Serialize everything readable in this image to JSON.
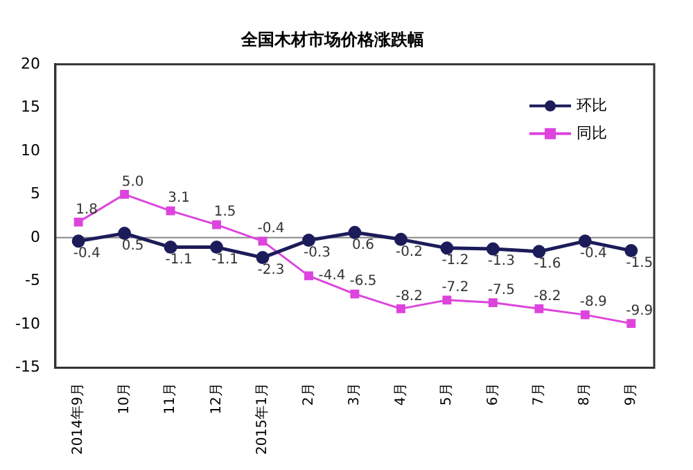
{
  "chart_data": {
    "type": "line",
    "title": "全国木材市场价格涨跌幅",
    "categories": [
      "2014年9月",
      "10月",
      "11月",
      "12月",
      "2015年1月",
      "2月",
      "3月",
      "4月",
      "5月",
      "6月",
      "7月",
      "8月",
      "9月"
    ],
    "series": [
      {
        "name": "环比",
        "color": "#1c1c5a",
        "marker": "circle",
        "values": [
          -0.4,
          0.5,
          -1.1,
          -1.1,
          -2.3,
          -0.3,
          0.6,
          -0.2,
          -1.2,
          -1.3,
          -1.6,
          -0.4,
          -1.5
        ],
        "value_labels": [
          "-0.4",
          "0.5",
          "-1.1",
          "-1.1",
          "-2.3",
          "-0.3",
          "0.6",
          "-0.2",
          "-1.2",
          "-1.3",
          "-1.6",
          "-0.4",
          "-1.5"
        ]
      },
      {
        "name": "同比",
        "color": "#dd44dd",
        "marker": "square",
        "values": [
          1.8,
          5.0,
          3.1,
          1.5,
          -0.4,
          -4.4,
          -6.5,
          -8.2,
          -7.2,
          -7.5,
          -8.2,
          -8.9,
          -9.9
        ],
        "value_labels": [
          "1.8",
          "5.0",
          "3.1",
          "1.5",
          "-0.4",
          "-4.4",
          "-6.5",
          "-8.2",
          "-7.2",
          "-7.5",
          "-8.2",
          "-8.9",
          "-9.9"
        ]
      }
    ],
    "ylim": [
      -15,
      20
    ],
    "yticks": [
      -15,
      -10,
      -5,
      0,
      5,
      10,
      15,
      20
    ],
    "grid": false,
    "ref_lines": [
      {
        "axis": "y",
        "value": 0,
        "color": "#888888"
      }
    ],
    "legend": "top right"
  }
}
